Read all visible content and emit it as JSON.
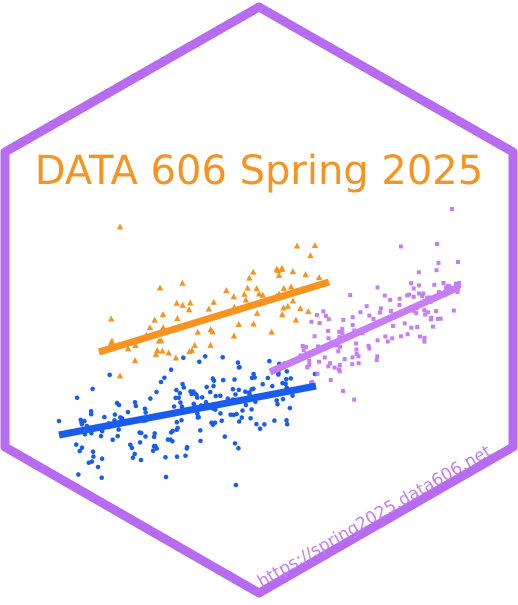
{
  "logo": {
    "title": "DATA 606 Spring 2025",
    "url": "https://spring2025.data606.net"
  },
  "colors": {
    "border": "#b66bf0",
    "title": "#f7931e",
    "orange": "#f7931e",
    "blue": "#1a5cf0",
    "purple": "#c77df5",
    "background": "#ffffff"
  },
  "clusters": [
    {
      "name": "orange",
      "marker": "triangle"
    },
    {
      "name": "blue",
      "marker": "circle"
    },
    {
      "name": "purple",
      "marker": "square"
    }
  ]
}
